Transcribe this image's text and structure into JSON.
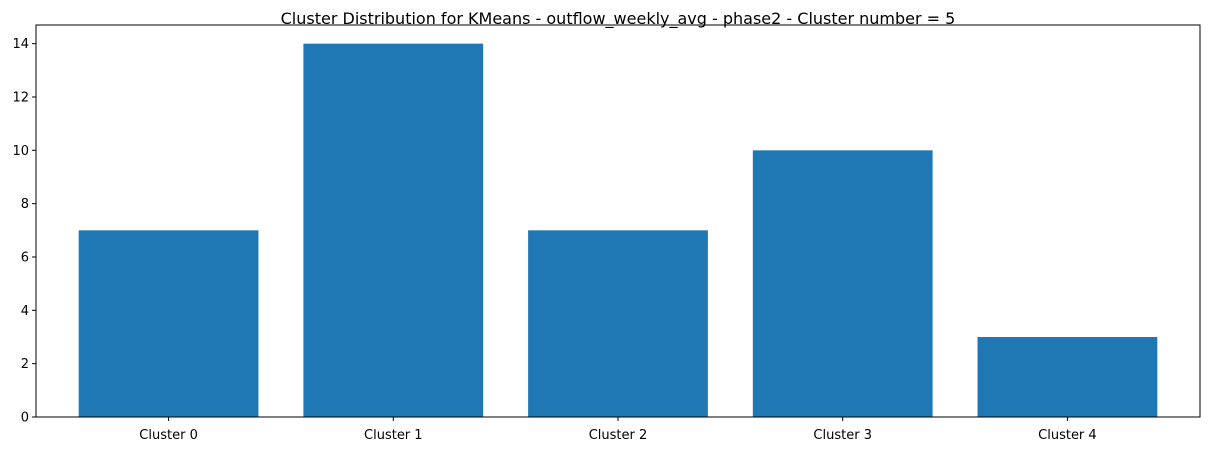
{
  "chart_data": {
    "type": "bar",
    "title": "Cluster Distribution for KMeans - outflow_weekly_avg - phase2 - Cluster number = 5",
    "xlabel": "",
    "ylabel": "",
    "categories": [
      "Cluster 0",
      "Cluster 1",
      "Cluster 2",
      "Cluster 3",
      "Cluster 4"
    ],
    "values": [
      7,
      14,
      7,
      10,
      3
    ],
    "ylim": [
      0,
      14.7
    ],
    "yticks": [
      0,
      2,
      4,
      6,
      8,
      10,
      12,
      14
    ],
    "grid": false,
    "legend": "none",
    "bar_color": "#1f77b4"
  }
}
